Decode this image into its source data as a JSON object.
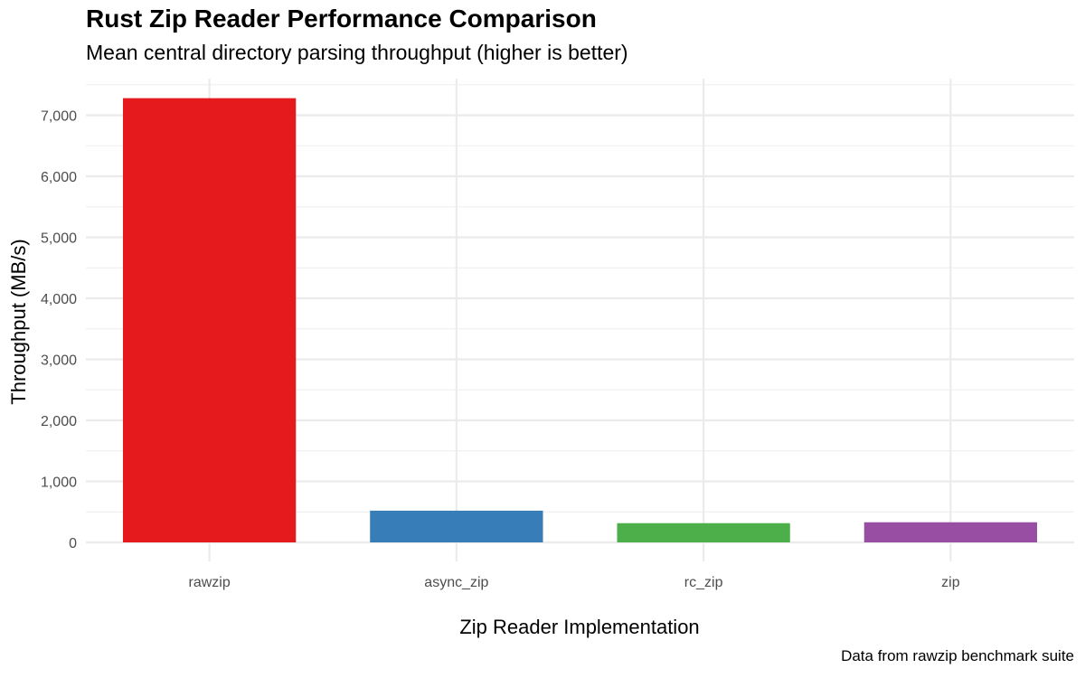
{
  "chart_data": {
    "type": "bar",
    "title": "Rust Zip Reader Performance Comparison",
    "subtitle": "Mean central directory parsing throughput (higher is better)",
    "xlabel": "Zip Reader Implementation",
    "ylabel": "Throughput (MB/s)",
    "caption": "Data from rawzip benchmark suite",
    "categories": [
      "rawzip",
      "async_zip",
      "rc_zip",
      "zip"
    ],
    "values": [
      7280,
      520,
      315,
      330
    ],
    "colors": [
      "#E41A1C",
      "#377EB8",
      "#4DAF4A",
      "#984EA3"
    ],
    "ylim": [
      0,
      7600
    ],
    "yticks": [
      0,
      1000,
      2000,
      3000,
      4000,
      5000,
      6000,
      7000
    ],
    "ytick_labels": [
      "0",
      "1,000",
      "2,000",
      "3,000",
      "4,000",
      "5,000",
      "6,000",
      "7,000"
    ],
    "grid": true,
    "legend": "none"
  }
}
